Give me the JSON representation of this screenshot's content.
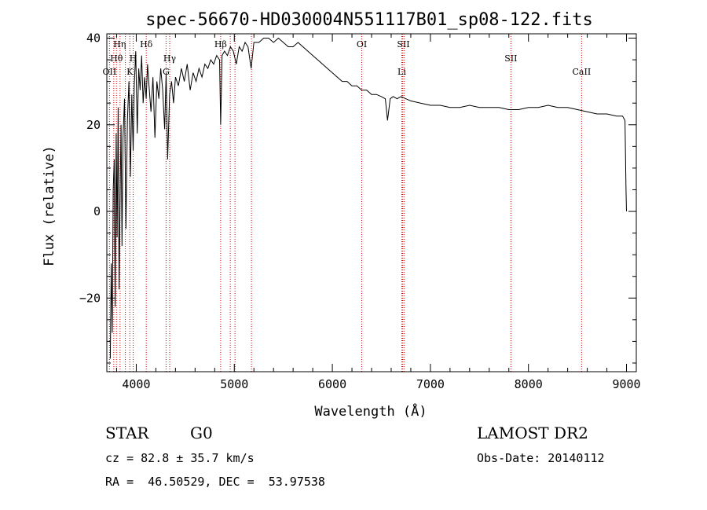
{
  "chart_data": {
    "type": "line",
    "title": "spec-56670-HD030004N551117B01_sp08-122.fits",
    "xlabel": "Wavelength (Å)",
    "ylabel": "Flux (relative)",
    "xlim": [
      3700,
      9100
    ],
    "ylim": [
      -37,
      41
    ],
    "x_ticks": [
      4000,
      5000,
      6000,
      7000,
      8000,
      9000
    ],
    "x_tick_labels": [
      "4000",
      "5000",
      "6000",
      "7000",
      "8000",
      "9000"
    ],
    "y_ticks": [
      -20,
      0,
      20,
      40
    ],
    "y_tick_labels": [
      "−20",
      "0",
      "20",
      "40"
    ],
    "grid": false,
    "legend": "none",
    "series": [
      {
        "x": [
          3735,
          3745,
          3755,
          3765,
          3775,
          3785,
          3795,
          3805,
          3815,
          3825,
          3835,
          3845,
          3855,
          3865,
          3880,
          3895,
          3910,
          3925,
          3940,
          3955,
          3968,
          3980,
          3995,
          4010,
          4025,
          4040,
          4055,
          4070,
          4085,
          4101,
          4115,
          4130,
          4150,
          4170,
          4190,
          4210,
          4230,
          4250,
          4270,
          4290,
          4305,
          4320,
          4340,
          4360,
          4380,
          4400,
          4430,
          4460,
          4490,
          4520,
          4550,
          4580,
          4610,
          4640,
          4670,
          4700,
          4730,
          4760,
          4790,
          4820,
          4850,
          4861,
          4875,
          4900,
          4930,
          4960,
          4990,
          5020,
          5050,
          5080,
          5110,
          5140,
          5172,
          5200,
          5250,
          5300,
          5350,
          5400,
          5450,
          5500,
          5550,
          5600,
          5650,
          5700,
          5750,
          5800,
          5850,
          5900,
          5950,
          6000,
          6050,
          6100,
          6150,
          6200,
          6250,
          6300,
          6350,
          6400,
          6450,
          6500,
          6540,
          6563,
          6590,
          6620,
          6660,
          6700,
          6750,
          6800,
          6900,
          7000,
          7100,
          7200,
          7300,
          7400,
          7500,
          7600,
          7700,
          7800,
          7900,
          8000,
          8100,
          8200,
          8300,
          8400,
          8500,
          8600,
          8700,
          8800,
          8900,
          8960,
          8985,
          8995,
          9000
        ],
        "y": [
          -34,
          -12,
          -28,
          5,
          12,
          -22,
          18,
          -6,
          24,
          -18,
          2,
          20,
          -8,
          17,
          26,
          -4,
          21,
          30,
          8,
          27,
          14,
          29,
          37,
          18,
          33,
          28,
          36,
          25,
          31,
          26,
          34,
          29,
          23,
          31,
          17,
          30,
          26,
          33,
          28,
          19,
          32,
          12,
          27,
          30,
          25,
          31,
          29,
          33,
          30,
          34,
          28,
          32,
          30,
          33,
          31,
          34,
          33,
          35,
          34,
          36,
          35,
          20,
          36,
          37,
          36,
          38,
          37,
          34,
          38,
          37,
          39,
          38,
          33,
          39,
          39,
          40,
          40,
          39,
          40,
          39,
          38,
          38,
          39,
          38,
          37,
          36,
          35,
          34,
          33,
          32,
          31,
          30,
          30,
          29,
          29,
          28,
          28,
          27,
          27,
          26.5,
          26,
          21,
          26,
          26.5,
          26,
          26.5,
          26,
          25.5,
          25,
          24.5,
          24.5,
          24,
          24,
          24.5,
          24,
          24,
          24,
          23.5,
          23.5,
          24,
          24,
          24.5,
          24,
          24,
          23.5,
          23,
          22.5,
          22.5,
          22,
          22,
          21,
          5,
          0
        ]
      }
    ],
    "annotations": {
      "lines": [
        3727,
        3771,
        3798,
        3835,
        3889,
        3934,
        3969,
        4102,
        4304,
        4341,
        4861,
        4959,
        5007,
        5175,
        6300,
        6708,
        6717,
        6731,
        7821,
        8542
      ],
      "labels_row1": [
        {
          "text": "Hη",
          "x": 3830
        },
        {
          "text": "Hδ",
          "x": 4102
        },
        {
          "text": "Hβ",
          "x": 4861
        },
        {
          "text": "OI",
          "x": 6300
        },
        {
          "text": "SII",
          "x": 6724
        }
      ],
      "labels_row2": [
        {
          "text": "Hθ",
          "x": 3798
        },
        {
          "text": "H",
          "x": 3969
        },
        {
          "text": "Hγ",
          "x": 4341
        },
        {
          "text": "SII",
          "x": 7821
        }
      ],
      "labels_row3": [
        {
          "text": "OII",
          "x": 3727
        },
        {
          "text": "K",
          "x": 3934
        },
        {
          "text": "G",
          "x": 4304
        },
        {
          "text": "Li",
          "x": 6708
        },
        {
          "text": "CaII",
          "x": 8542
        }
      ]
    }
  },
  "info": {
    "object_type": "STAR",
    "subclass": "G0",
    "survey": "LAMOST DR2",
    "cz": "cz = 82.8 ± 35.7 km/s",
    "obs_date": "Obs-Date: 20140112",
    "coords": "RA =  46.50529, DEC =  53.97538"
  },
  "colors": {
    "spectrum": "#000000",
    "line_markers": "#cc0000",
    "axes": "#000000",
    "background": "#ffffff"
  }
}
